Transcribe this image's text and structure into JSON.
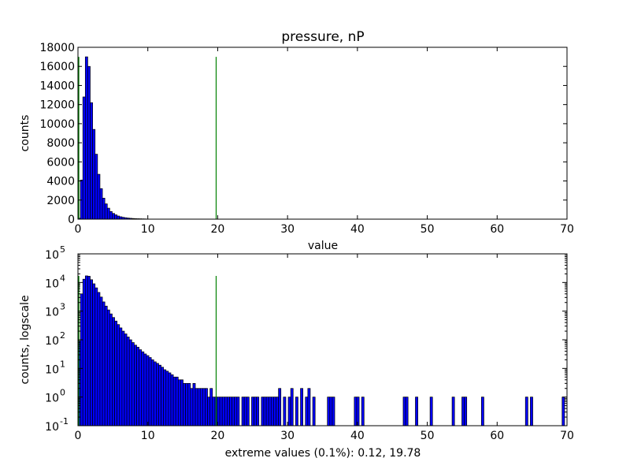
{
  "chart_data": [
    {
      "type": "bar",
      "title": "pressure, nP",
      "xlabel": "value",
      "ylabel": "counts",
      "xlim": [
        0,
        70
      ],
      "ylim": [
        0,
        18000
      ],
      "x_ticks": [
        "0",
        "10",
        "20",
        "30",
        "40",
        "50",
        "60",
        "70"
      ],
      "y_ticks": [
        "0",
        "2000",
        "4000",
        "6000",
        "8000",
        "10000",
        "12000",
        "14000",
        "16000",
        "18000"
      ],
      "bin_width": 0.35,
      "bins": [
        {
          "x": 0.0,
          "y": 100
        },
        {
          "x": 0.35,
          "y": 4100
        },
        {
          "x": 0.7,
          "y": 12800
        },
        {
          "x": 1.05,
          "y": 17000
        },
        {
          "x": 1.4,
          "y": 16000
        },
        {
          "x": 1.75,
          "y": 12200
        },
        {
          "x": 2.1,
          "y": 9400
        },
        {
          "x": 2.45,
          "y": 6800
        },
        {
          "x": 2.8,
          "y": 4700
        },
        {
          "x": 3.15,
          "y": 3200
        },
        {
          "x": 3.5,
          "y": 2200
        },
        {
          "x": 3.85,
          "y": 1600
        },
        {
          "x": 4.2,
          "y": 1150
        },
        {
          "x": 4.55,
          "y": 800
        },
        {
          "x": 4.9,
          "y": 600
        },
        {
          "x": 5.25,
          "y": 450
        },
        {
          "x": 5.6,
          "y": 330
        },
        {
          "x": 5.95,
          "y": 250
        },
        {
          "x": 6.3,
          "y": 190
        },
        {
          "x": 6.65,
          "y": 150
        },
        {
          "x": 7.0,
          "y": 115
        },
        {
          "x": 7.35,
          "y": 90
        },
        {
          "x": 7.7,
          "y": 70
        },
        {
          "x": 8.05,
          "y": 55
        },
        {
          "x": 8.4,
          "y": 45
        },
        {
          "x": 8.75,
          "y": 38
        },
        {
          "x": 9.1,
          "y": 30
        },
        {
          "x": 9.45,
          "y": 25
        }
      ],
      "vlines": [
        {
          "x": 0.12,
          "y": 17000,
          "color": "#008000"
        },
        {
          "x": 19.78,
          "y": 17000,
          "color": "#008000"
        }
      ]
    },
    {
      "type": "bar",
      "xlabel": "extreme values (0.1%): 0.12, 19.78",
      "ylabel": "counts, logscale",
      "yscale": "log",
      "xlim": [
        0,
        70
      ],
      "ylim": [
        0.1,
        100000
      ],
      "x_ticks": [
        "0",
        "10",
        "20",
        "30",
        "40",
        "50",
        "60",
        "70"
      ],
      "y_ticks": [
        {
          "base": "10",
          "exp": "-1"
        },
        {
          "base": "10",
          "exp": "0"
        },
        {
          "base": "10",
          "exp": "1"
        },
        {
          "base": "10",
          "exp": "2"
        },
        {
          "base": "10",
          "exp": "3"
        },
        {
          "base": "10",
          "exp": "4"
        },
        {
          "base": "10",
          "exp": "5"
        }
      ],
      "bin_width": 0.35,
      "bins": [
        {
          "x": 0.0,
          "y": 90
        },
        {
          "x": 0.35,
          "y": 4000
        },
        {
          "x": 0.7,
          "y": 13000
        },
        {
          "x": 1.05,
          "y": 17000
        },
        {
          "x": 1.4,
          "y": 16500
        },
        {
          "x": 1.75,
          "y": 12500
        },
        {
          "x": 2.1,
          "y": 9000
        },
        {
          "x": 2.45,
          "y": 6500
        },
        {
          "x": 2.8,
          "y": 4500
        },
        {
          "x": 3.15,
          "y": 3100
        },
        {
          "x": 3.5,
          "y": 2100
        },
        {
          "x": 3.85,
          "y": 1500
        },
        {
          "x": 4.2,
          "y": 1100
        },
        {
          "x": 4.55,
          "y": 800
        },
        {
          "x": 4.9,
          "y": 600
        },
        {
          "x": 5.25,
          "y": 450
        },
        {
          "x": 5.6,
          "y": 340
        },
        {
          "x": 5.95,
          "y": 260
        },
        {
          "x": 6.3,
          "y": 200
        },
        {
          "x": 6.65,
          "y": 160
        },
        {
          "x": 7.0,
          "y": 125
        },
        {
          "x": 7.35,
          "y": 100
        },
        {
          "x": 7.7,
          "y": 80
        },
        {
          "x": 8.05,
          "y": 65
        },
        {
          "x": 8.4,
          "y": 55
        },
        {
          "x": 8.75,
          "y": 45
        },
        {
          "x": 9.1,
          "y": 38
        },
        {
          "x": 9.45,
          "y": 32
        },
        {
          "x": 9.8,
          "y": 28
        },
        {
          "x": 10.15,
          "y": 24
        },
        {
          "x": 10.5,
          "y": 20
        },
        {
          "x": 10.85,
          "y": 17
        },
        {
          "x": 11.2,
          "y": 15
        },
        {
          "x": 11.55,
          "y": 13
        },
        {
          "x": 11.9,
          "y": 11
        },
        {
          "x": 12.25,
          "y": 9
        },
        {
          "x": 12.6,
          "y": 8
        },
        {
          "x": 12.95,
          "y": 7
        },
        {
          "x": 13.3,
          "y": 6
        },
        {
          "x": 13.65,
          "y": 5
        },
        {
          "x": 14.0,
          "y": 5
        },
        {
          "x": 14.35,
          "y": 4
        },
        {
          "x": 14.7,
          "y": 4
        },
        {
          "x": 15.05,
          "y": 3
        },
        {
          "x": 15.4,
          "y": 3
        },
        {
          "x": 15.75,
          "y": 3
        },
        {
          "x": 16.1,
          "y": 2
        },
        {
          "x": 16.45,
          "y": 3
        },
        {
          "x": 16.8,
          "y": 2
        },
        {
          "x": 17.15,
          "y": 2
        },
        {
          "x": 17.5,
          "y": 2
        },
        {
          "x": 17.85,
          "y": 2
        },
        {
          "x": 18.2,
          "y": 2
        },
        {
          "x": 18.55,
          "y": 1
        },
        {
          "x": 18.9,
          "y": 2
        },
        {
          "x": 19.25,
          "y": 1
        },
        {
          "x": 19.6,
          "y": 1
        },
        {
          "x": 19.95,
          "y": 1
        },
        {
          "x": 20.3,
          "y": 1
        },
        {
          "x": 20.65,
          "y": 1
        },
        {
          "x": 21.0,
          "y": 1
        },
        {
          "x": 21.35,
          "y": 1
        },
        {
          "x": 21.7,
          "y": 1
        },
        {
          "x": 22.05,
          "y": 1
        },
        {
          "x": 22.4,
          "y": 1
        },
        {
          "x": 22.75,
          "y": 1
        },
        {
          "x": 23.45,
          "y": 1
        },
        {
          "x": 23.8,
          "y": 1
        },
        {
          "x": 24.15,
          "y": 1
        },
        {
          "x": 24.85,
          "y": 1
        },
        {
          "x": 25.2,
          "y": 1
        },
        {
          "x": 25.55,
          "y": 1
        },
        {
          "x": 26.25,
          "y": 1
        },
        {
          "x": 26.6,
          "y": 1
        },
        {
          "x": 26.95,
          "y": 1
        },
        {
          "x": 27.3,
          "y": 1
        },
        {
          "x": 27.65,
          "y": 1
        },
        {
          "x": 28.0,
          "y": 1
        },
        {
          "x": 28.35,
          "y": 1
        },
        {
          "x": 28.7,
          "y": 2
        },
        {
          "x": 29.4,
          "y": 1
        },
        {
          "x": 30.1,
          "y": 1
        },
        {
          "x": 30.45,
          "y": 2
        },
        {
          "x": 31.15,
          "y": 1
        },
        {
          "x": 31.85,
          "y": 2
        },
        {
          "x": 32.55,
          "y": 1
        },
        {
          "x": 32.9,
          "y": 2
        },
        {
          "x": 33.6,
          "y": 1
        },
        {
          "x": 35.7,
          "y": 1
        },
        {
          "x": 36.05,
          "y": 1
        },
        {
          "x": 36.4,
          "y": 1
        },
        {
          "x": 39.55,
          "y": 1
        },
        {
          "x": 39.9,
          "y": 1
        },
        {
          "x": 40.6,
          "y": 1
        },
        {
          "x": 46.55,
          "y": 1
        },
        {
          "x": 46.9,
          "y": 1
        },
        {
          "x": 48.3,
          "y": 1
        },
        {
          "x": 50.4,
          "y": 1
        },
        {
          "x": 53.55,
          "y": 1
        },
        {
          "x": 54.95,
          "y": 1
        },
        {
          "x": 55.3,
          "y": 1
        },
        {
          "x": 57.75,
          "y": 1
        },
        {
          "x": 64.05,
          "y": 1
        },
        {
          "x": 64.75,
          "y": 1
        },
        {
          "x": 69.3,
          "y": 1
        }
      ],
      "vlines": [
        {
          "x": 0.12,
          "y": 17000,
          "color": "#008000"
        },
        {
          "x": 19.78,
          "y": 17000,
          "color": "#008000"
        }
      ]
    }
  ]
}
